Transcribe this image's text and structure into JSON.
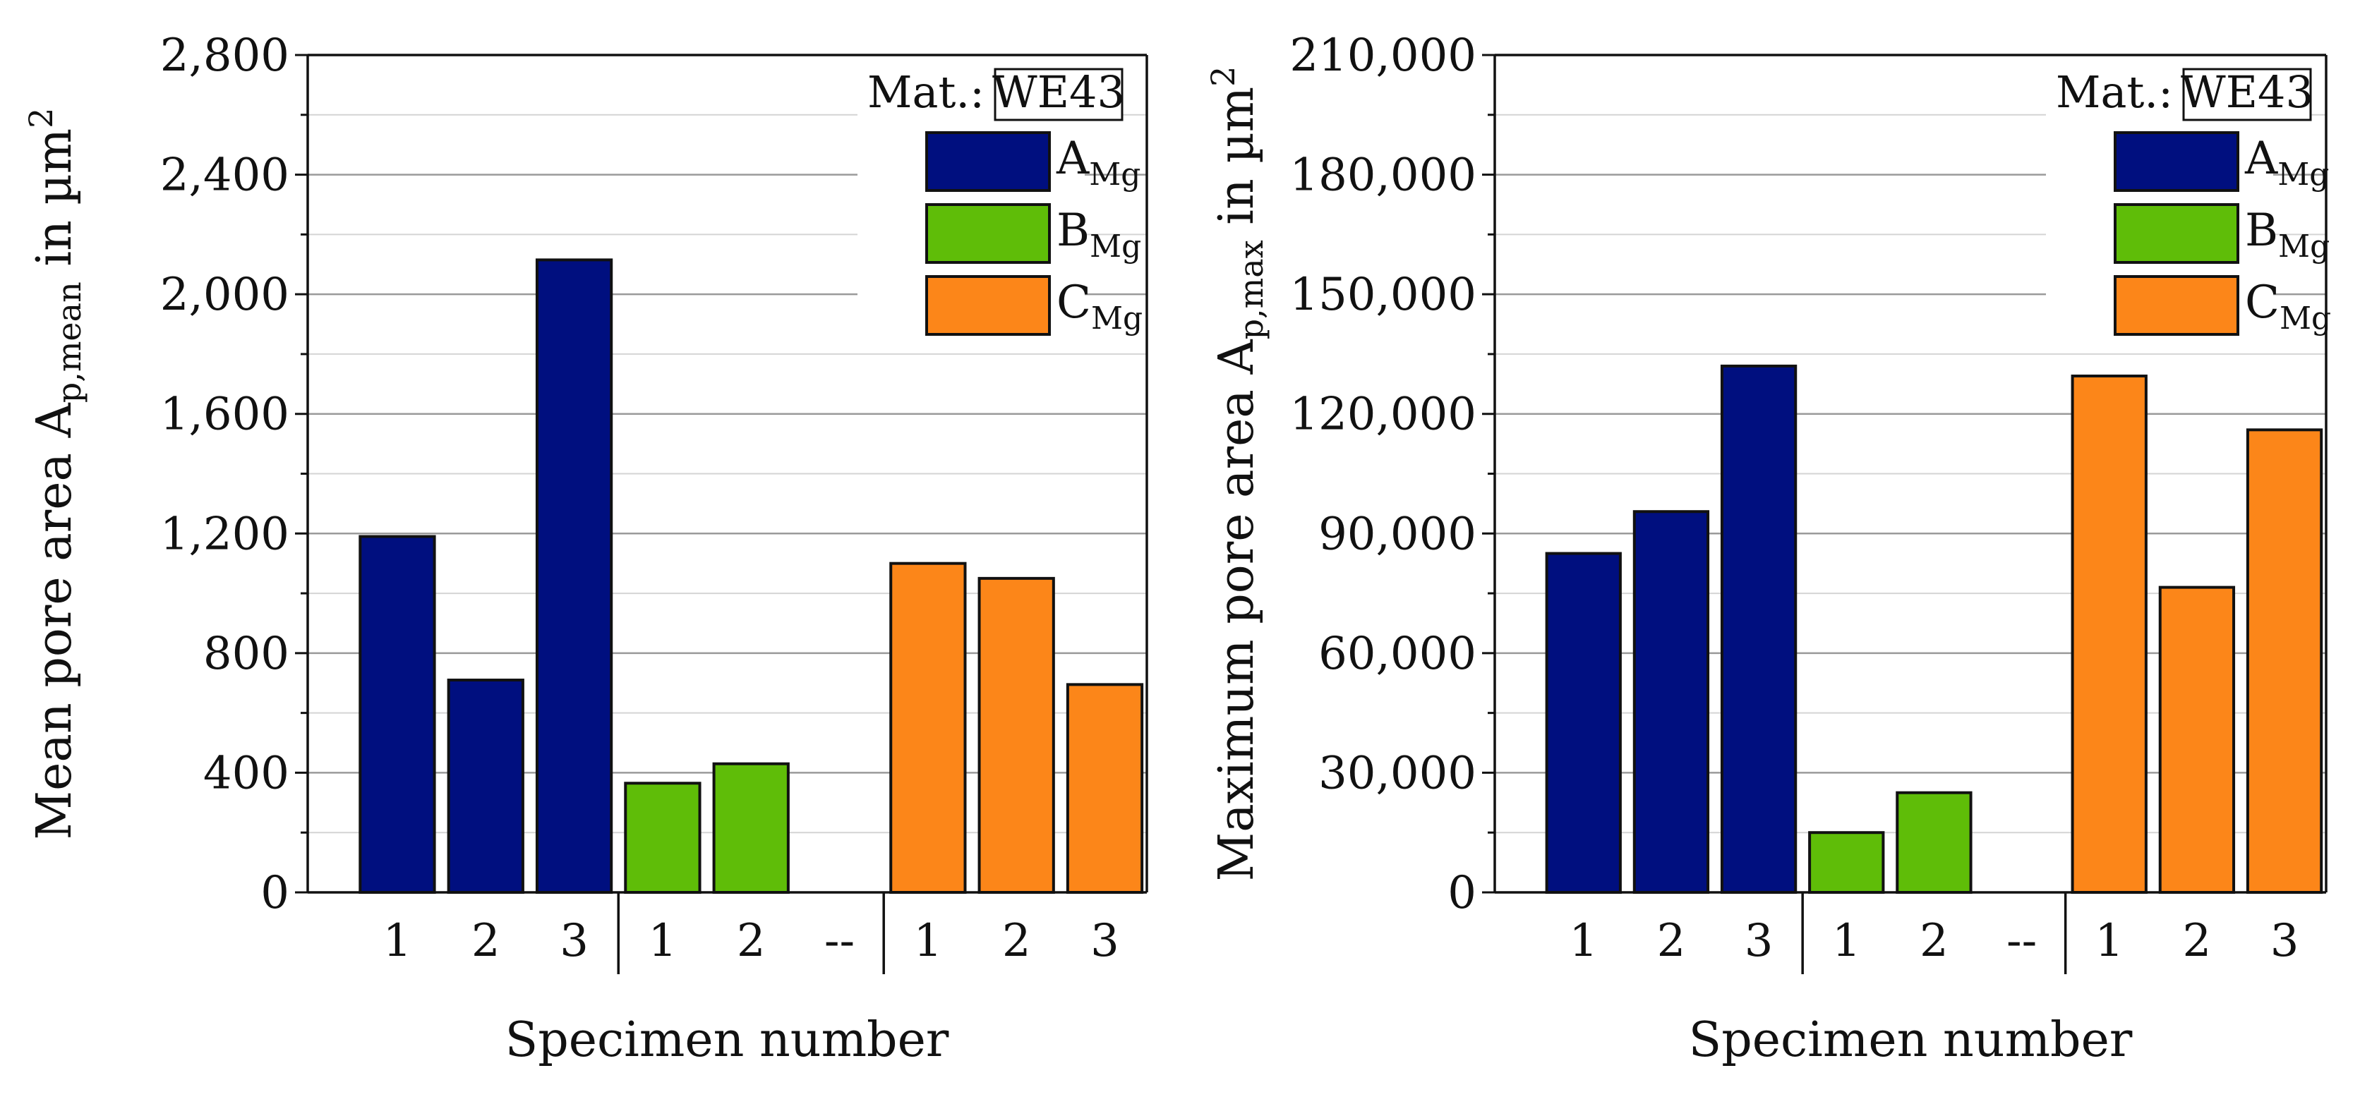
{
  "chart_data": [
    {
      "type": "bar",
      "title": "",
      "xlabel": "Specimen number",
      "ylabel": "Mean pore area A",
      "ylabel_sub": "p,mean",
      "ylabel_tail": " in µm",
      "ylabel_sup": "2",
      "ylim": [
        0,
        2800
      ],
      "yticks": [
        0,
        400,
        800,
        1200,
        1600,
        2000,
        2400,
        2800
      ],
      "ytick_labels": [
        "0",
        "400",
        "800",
        "1,200",
        "1,600",
        "2,000",
        "2,400",
        "2,800"
      ],
      "categories": [
        "1",
        "2",
        "3",
        "1",
        "2",
        "--",
        "1",
        "2",
        "3"
      ],
      "group_separators_after": [
        2,
        5
      ],
      "values": [
        1190,
        710,
        2115,
        365,
        430,
        null,
        1100,
        1050,
        695
      ],
      "series_of_bar": [
        0,
        0,
        0,
        1,
        1,
        null,
        2,
        2,
        2
      ],
      "material_label": "Mat.:",
      "material": "WE43",
      "legend": [
        {
          "name": "A",
          "sub": "Mg",
          "color": "#000f7f"
        },
        {
          "name": "B",
          "sub": "Mg",
          "color": "#5fbd08"
        },
        {
          "name": "C",
          "sub": "Mg",
          "color": "#fc8619"
        }
      ]
    },
    {
      "type": "bar",
      "title": "",
      "xlabel": "Specimen number",
      "ylabel": "Maximum pore area A",
      "ylabel_sub": "p,max",
      "ylabel_tail": " in µm",
      "ylabel_sup": "2",
      "ylim": [
        0,
        210000
      ],
      "yticks": [
        0,
        30000,
        60000,
        90000,
        120000,
        150000,
        180000,
        210000
      ],
      "ytick_labels": [
        "0",
        "30,000",
        "60,000",
        "90,000",
        "120,000",
        "150,000",
        "180,000",
        "210,000"
      ],
      "categories": [
        "1",
        "2",
        "3",
        "1",
        "2",
        "--",
        "1",
        "2",
        "3"
      ],
      "group_separators_after": [
        2,
        5
      ],
      "values": [
        85000,
        95500,
        132000,
        15000,
        25000,
        null,
        129500,
        76500,
        116000
      ],
      "series_of_bar": [
        0,
        0,
        0,
        1,
        1,
        null,
        2,
        2,
        2
      ],
      "material_label": "Mat.:",
      "material": "WE43",
      "legend": [
        {
          "name": "A",
          "sub": "Mg",
          "color": "#000f7f"
        },
        {
          "name": "B",
          "sub": "Mg",
          "color": "#5fbd08"
        },
        {
          "name": "C",
          "sub": "Mg",
          "color": "#fc8619"
        }
      ]
    }
  ]
}
